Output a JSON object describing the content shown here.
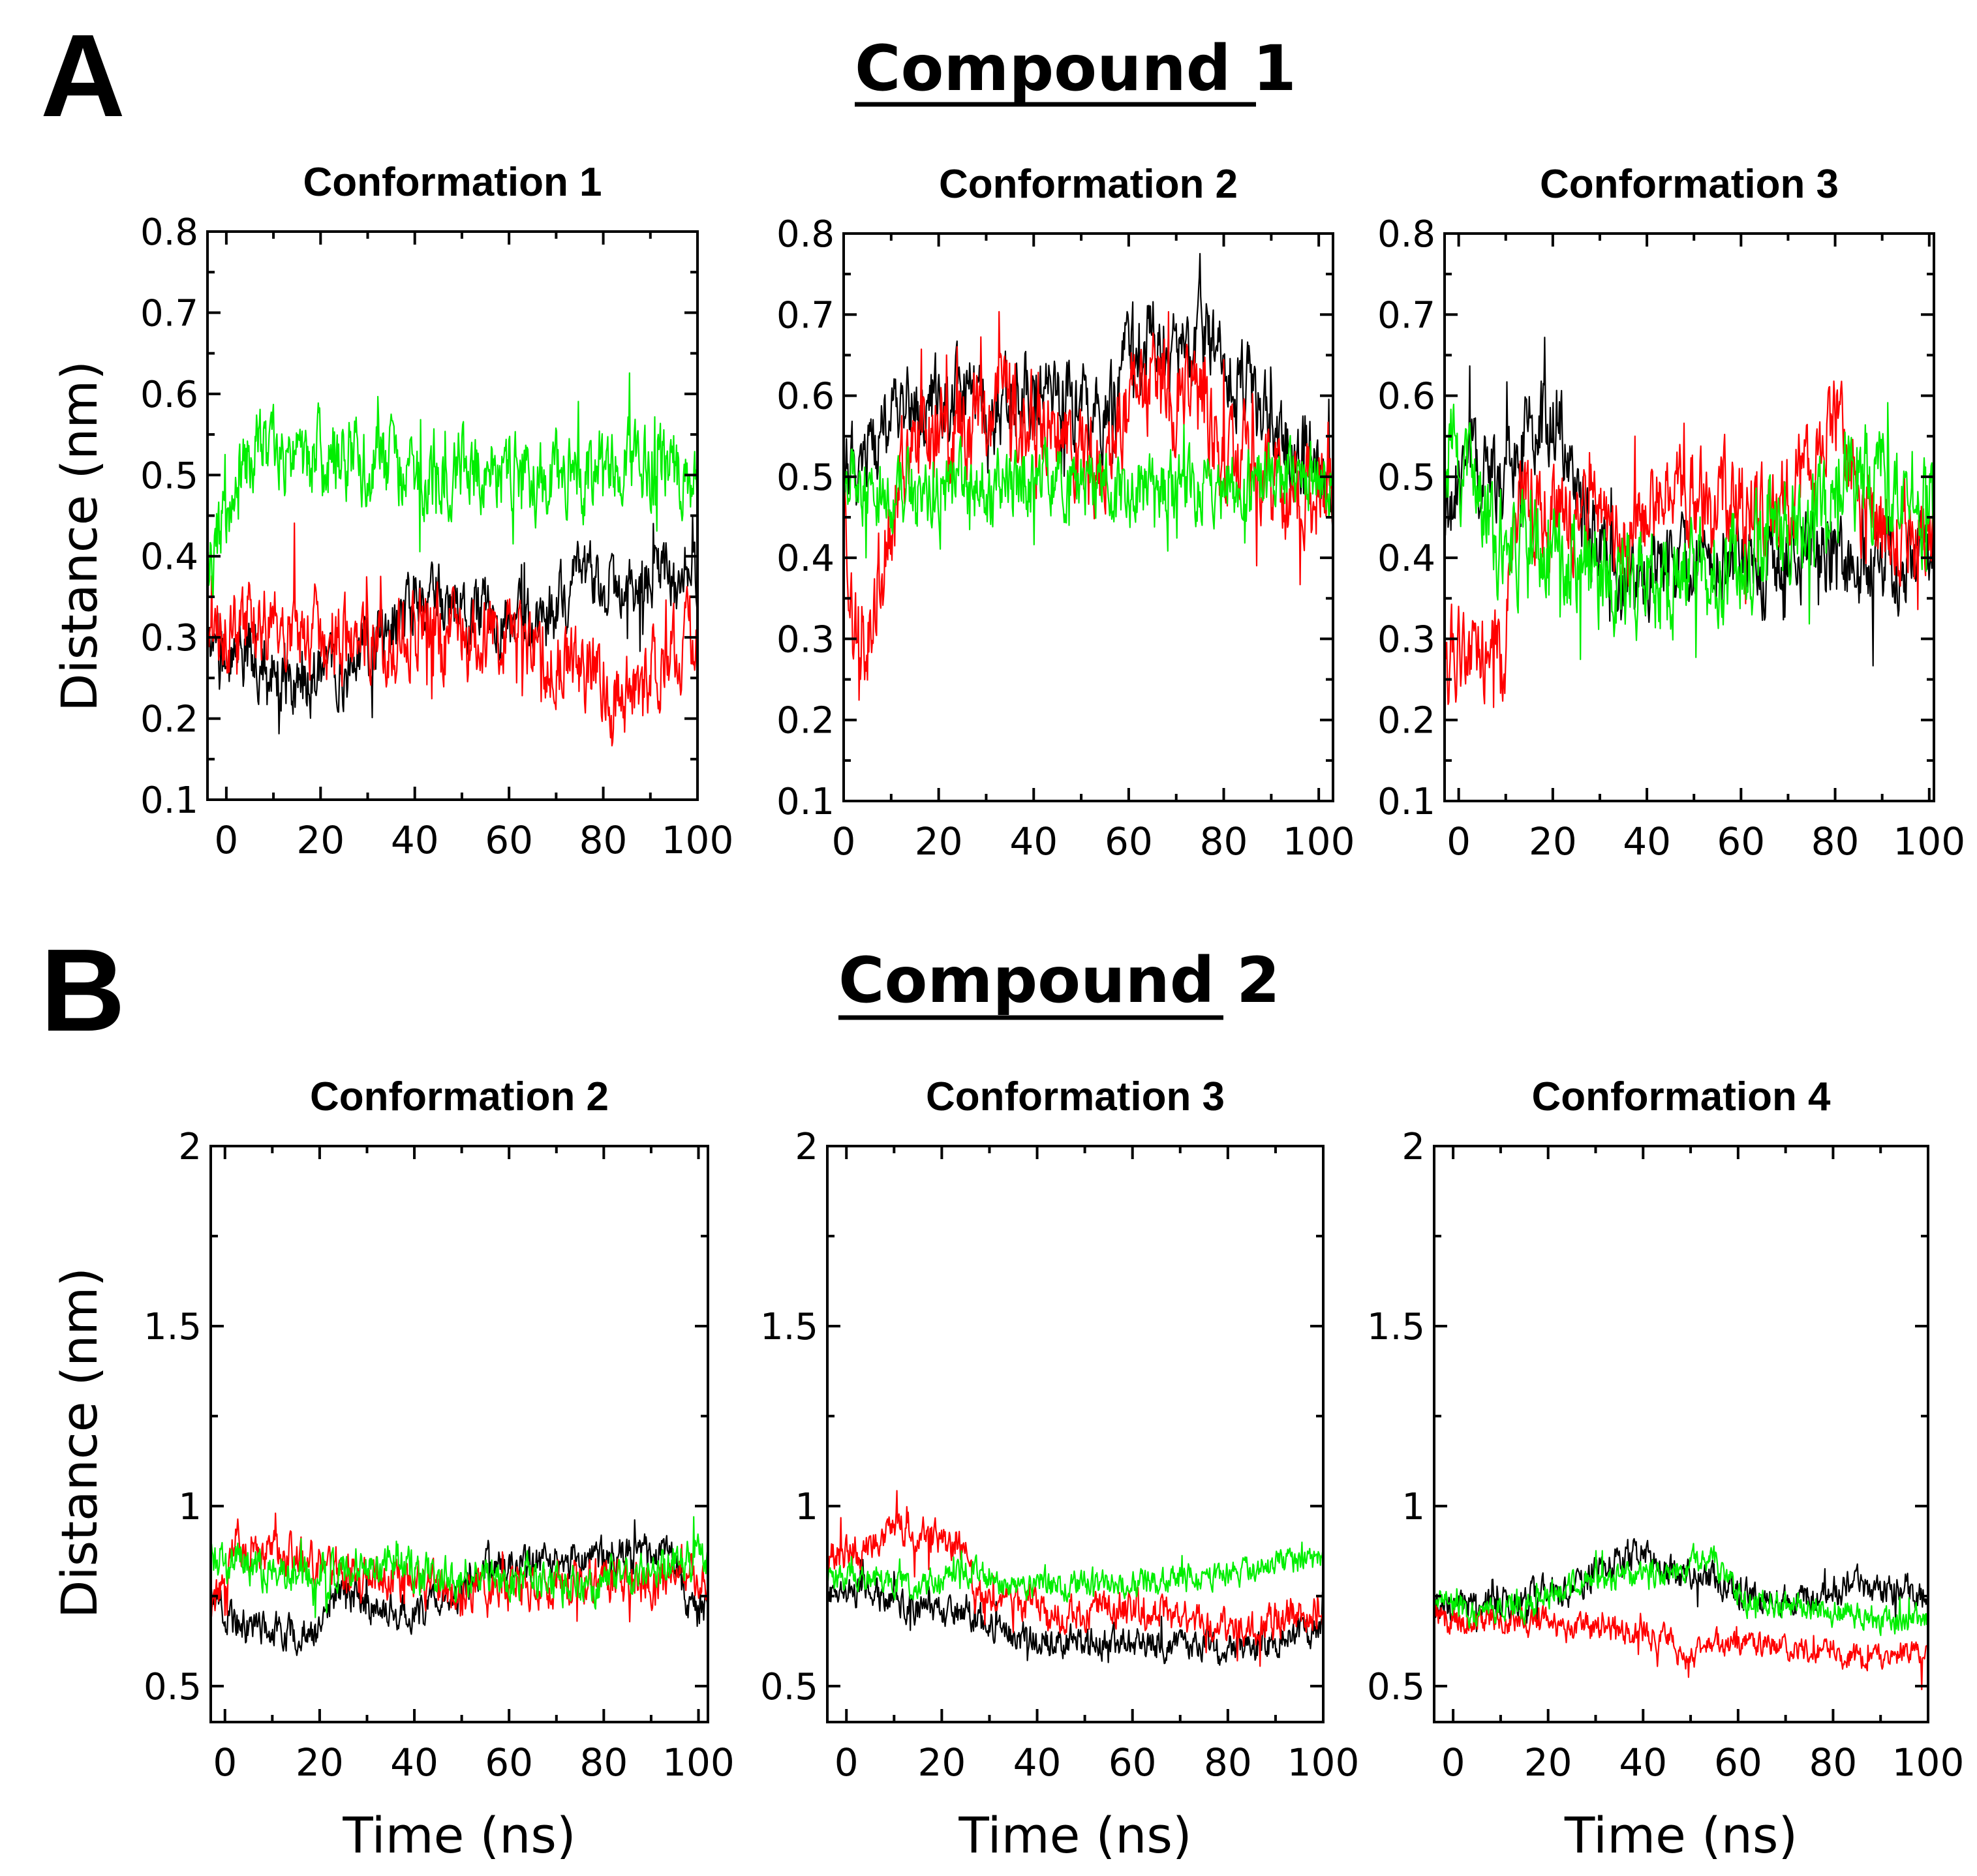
{
  "figure": {
    "sections": [
      {
        "letter": "A",
        "compound_title": "Compound 1",
        "ylabel": "Distance (nm)",
        "xlabel": ""
      },
      {
        "letter": "B",
        "compound_title": "Compound 2",
        "ylabel": "Distance (nm)",
        "xlabel": "Time (ns)"
      }
    ]
  },
  "series_colors": {
    "black": "#000000",
    "red": "#ff0000",
    "green": "#00ee00"
  },
  "chart_data": [
    {
      "type": "line",
      "section": "A",
      "title": "Conformation 1",
      "xlabel": "",
      "ylabel": "Distance (nm)",
      "xlim": [
        -4,
        100
      ],
      "ylim": [
        0.1,
        0.8
      ],
      "xticks": [
        0,
        20,
        40,
        60,
        80,
        100
      ],
      "xtick_labels": [
        "0",
        "20",
        "40",
        "60",
        "80",
        "100"
      ],
      "yticks": [
        0.1,
        0.2,
        0.3,
        0.4,
        0.5,
        0.6,
        0.7,
        0.8
      ],
      "ytick_labels": [
        "0.1",
        "0.2",
        "0.3",
        "0.4",
        "0.5",
        "0.6",
        "0.7",
        "0.8"
      ],
      "series": [
        {
          "name": "black",
          "color": "#000000",
          "x": [
            -4,
            5,
            15,
            25,
            35,
            45,
            55,
            65,
            75,
            85,
            95,
            100
          ],
          "y": [
            0.27,
            0.28,
            0.25,
            0.26,
            0.31,
            0.35,
            0.33,
            0.31,
            0.36,
            0.36,
            0.38,
            0.37
          ],
          "noise": 0.035
        },
        {
          "name": "red",
          "color": "#ff0000",
          "x": [
            -4,
            5,
            15,
            25,
            35,
            45,
            55,
            65,
            75,
            85,
            95,
            100
          ],
          "y": [
            0.3,
            0.32,
            0.31,
            0.3,
            0.3,
            0.31,
            0.3,
            0.29,
            0.26,
            0.23,
            0.29,
            0.31
          ],
          "noise": 0.04
        },
        {
          "name": "green",
          "color": "#00ee00",
          "x": [
            -4,
            5,
            15,
            25,
            35,
            45,
            55,
            65,
            75,
            85,
            95,
            100
          ],
          "y": [
            0.38,
            0.53,
            0.52,
            0.52,
            0.51,
            0.51,
            0.51,
            0.5,
            0.51,
            0.51,
            0.51,
            0.5
          ],
          "noise": 0.04
        }
      ]
    },
    {
      "type": "line",
      "section": "A",
      "title": "Conformation 2",
      "xlabel": "",
      "ylabel": "",
      "xlim": [
        0,
        103
      ],
      "ylim": [
        0.1,
        0.8
      ],
      "xticks": [
        0,
        20,
        40,
        60,
        80,
        100
      ],
      "xtick_labels": [
        "0",
        "20",
        "40",
        "60",
        "80",
        "100"
      ],
      "yticks": [
        0.1,
        0.2,
        0.3,
        0.4,
        0.5,
        0.6,
        0.7,
        0.8
      ],
      "ytick_labels": [
        "0.1",
        "0.2",
        "0.3",
        "0.4",
        "0.5",
        "0.6",
        "0.7",
        "0.8"
      ],
      "series": [
        {
          "name": "black",
          "color": "#000000",
          "x": [
            0,
            5,
            10,
            20,
            30,
            40,
            50,
            56,
            60,
            65,
            70,
            75,
            80,
            90,
            100,
            103
          ],
          "y": [
            0.5,
            0.52,
            0.58,
            0.6,
            0.59,
            0.61,
            0.59,
            0.57,
            0.67,
            0.68,
            0.65,
            0.68,
            0.63,
            0.58,
            0.52,
            0.45
          ],
          "noise": 0.04
        },
        {
          "name": "red",
          "color": "#ff0000",
          "x": [
            0,
            2,
            5,
            8,
            12,
            20,
            30,
            40,
            50,
            54,
            56,
            62,
            68,
            72,
            80,
            90,
            100,
            103
          ],
          "y": [
            0.45,
            0.3,
            0.32,
            0.38,
            0.52,
            0.54,
            0.58,
            0.57,
            0.53,
            0.5,
            0.56,
            0.62,
            0.6,
            0.63,
            0.52,
            0.49,
            0.48,
            0.46
          ],
          "noise": 0.05
        },
        {
          "name": "green",
          "color": "#00ee00",
          "x": [
            0,
            10,
            20,
            30,
            40,
            50,
            60,
            70,
            80,
            90,
            100,
            103
          ],
          "y": [
            0.5,
            0.48,
            0.49,
            0.48,
            0.49,
            0.48,
            0.48,
            0.49,
            0.48,
            0.51,
            0.5,
            0.49
          ],
          "noise": 0.035
        }
      ]
    },
    {
      "type": "line",
      "section": "A",
      "title": "Conformation 3",
      "xlabel": "",
      "ylabel": "",
      "xlim": [
        -3,
        101
      ],
      "ylim": [
        0.1,
        0.8
      ],
      "xticks": [
        0,
        20,
        40,
        60,
        80,
        100
      ],
      "xtick_labels": [
        "0",
        "20",
        "40",
        "60",
        "80",
        "100"
      ],
      "yticks": [
        0.1,
        0.2,
        0.3,
        0.4,
        0.5,
        0.6,
        0.7,
        0.8
      ],
      "ytick_labels": [
        "0.1",
        "0.2",
        "0.3",
        "0.4",
        "0.5",
        "0.6",
        "0.7",
        "0.8"
      ],
      "series": [
        {
          "name": "black",
          "color": "#000000",
          "x": [
            -3,
            3,
            8,
            15,
            22,
            27,
            35,
            45,
            55,
            65,
            75,
            85,
            95,
            101
          ],
          "y": [
            0.45,
            0.52,
            0.48,
            0.57,
            0.56,
            0.43,
            0.37,
            0.38,
            0.4,
            0.39,
            0.41,
            0.4,
            0.39,
            0.41
          ],
          "noise": 0.04
        },
        {
          "name": "red",
          "color": "#ff0000",
          "x": [
            -3,
            5,
            10,
            11,
            15,
            25,
            35,
            45,
            55,
            65,
            70,
            75,
            80,
            85,
            90,
            95,
            101
          ],
          "y": [
            0.28,
            0.29,
            0.27,
            0.44,
            0.46,
            0.44,
            0.43,
            0.48,
            0.48,
            0.45,
            0.47,
            0.52,
            0.58,
            0.47,
            0.44,
            0.41,
            0.45
          ],
          "noise": 0.045
        },
        {
          "name": "green",
          "color": "#00ee00",
          "x": [
            -3,
            3,
            8,
            15,
            25,
            35,
            45,
            55,
            65,
            75,
            85,
            95,
            101
          ],
          "y": [
            0.55,
            0.47,
            0.42,
            0.4,
            0.39,
            0.38,
            0.37,
            0.38,
            0.42,
            0.45,
            0.5,
            0.48,
            0.46
          ],
          "noise": 0.05
        }
      ]
    },
    {
      "type": "line",
      "section": "B",
      "title": "Conformation 2",
      "xlabel": "Time (ns)",
      "ylabel": "Distance (nm)",
      "xlim": [
        -3,
        102
      ],
      "ylim": [
        0.4,
        2.0
      ],
      "xticks": [
        0,
        20,
        40,
        60,
        80,
        100
      ],
      "xtick_labels": [
        "0",
        "20",
        "40",
        "60",
        "80",
        "100"
      ],
      "yticks": [
        0.5,
        1.0,
        1.5,
        2.0
      ],
      "ytick_labels": [
        "0.5",
        "1",
        "1.5",
        "2"
      ],
      "series": [
        {
          "name": "black",
          "color": "#000000",
          "x": [
            -3,
            5,
            15,
            20,
            25,
            30,
            40,
            50,
            55,
            60,
            70,
            80,
            90,
            95,
            98,
            102
          ],
          "y": [
            0.72,
            0.66,
            0.65,
            0.65,
            0.78,
            0.72,
            0.7,
            0.75,
            0.85,
            0.84,
            0.85,
            0.86,
            0.87,
            0.85,
            0.72,
            0.7
          ],
          "noise": 0.04
        },
        {
          "name": "red",
          "color": "#ff0000",
          "x": [
            -3,
            2,
            5,
            10,
            20,
            30,
            40,
            50,
            60,
            70,
            80,
            90,
            100,
            102
          ],
          "y": [
            0.68,
            0.92,
            0.88,
            0.86,
            0.84,
            0.8,
            0.78,
            0.76,
            0.76,
            0.78,
            0.8,
            0.78,
            0.82,
            0.8
          ],
          "noise": 0.05
        },
        {
          "name": "green",
          "color": "#00ee00",
          "x": [
            -3,
            5,
            15,
            25,
            35,
            45,
            55,
            65,
            75,
            85,
            95,
            102
          ],
          "y": [
            0.85,
            0.84,
            0.8,
            0.82,
            0.84,
            0.8,
            0.79,
            0.8,
            0.78,
            0.8,
            0.84,
            0.86
          ],
          "noise": 0.045
        }
      ]
    },
    {
      "type": "line",
      "section": "B",
      "title": "Conformation 3",
      "xlabel": "Time (ns)",
      "ylabel": "",
      "xlim": [
        -4,
        100
      ],
      "ylim": [
        0.4,
        2.0
      ],
      "xticks": [
        0,
        20,
        40,
        60,
        80,
        100
      ],
      "xtick_labels": [
        "0",
        "20",
        "40",
        "60",
        "80",
        "100"
      ],
      "yticks": [
        0.5,
        1.0,
        1.5,
        2.0
      ],
      "ytick_labels": [
        "0.5",
        "1",
        "1.5",
        "2"
      ],
      "series": [
        {
          "name": "black",
          "color": "#000000",
          "x": [
            -4,
            5,
            15,
            25,
            30,
            40,
            50,
            60,
            70,
            80,
            90,
            100
          ],
          "y": [
            0.75,
            0.76,
            0.72,
            0.7,
            0.66,
            0.63,
            0.62,
            0.62,
            0.62,
            0.6,
            0.62,
            0.66
          ],
          "noise": 0.035
        },
        {
          "name": "red",
          "color": "#ff0000",
          "x": [
            -4,
            5,
            10,
            15,
            20,
            25,
            27,
            35,
            45,
            55,
            65,
            75,
            85,
            95,
            100
          ],
          "y": [
            0.86,
            0.88,
            0.97,
            0.92,
            0.9,
            0.86,
            0.75,
            0.72,
            0.7,
            0.72,
            0.7,
            0.68,
            0.66,
            0.7,
            0.7
          ],
          "noise": 0.04
        },
        {
          "name": "green",
          "color": "#00ee00",
          "x": [
            -4,
            5,
            15,
            25,
            35,
            45,
            55,
            65,
            75,
            85,
            95,
            100
          ],
          "y": [
            0.8,
            0.8,
            0.78,
            0.82,
            0.78,
            0.78,
            0.79,
            0.79,
            0.8,
            0.82,
            0.85,
            0.85
          ],
          "noise": 0.03
        }
      ]
    },
    {
      "type": "line",
      "section": "B",
      "title": "Conformation 4",
      "xlabel": "Time (ns)",
      "ylabel": "",
      "xlim": [
        -4,
        100
      ],
      "ylim": [
        0.4,
        2.0
      ],
      "xticks": [
        0,
        20,
        40,
        60,
        80,
        100
      ],
      "xtick_labels": [
        "0",
        "20",
        "40",
        "60",
        "80",
        "100"
      ],
      "yticks": [
        0.5,
        1.0,
        1.5,
        2.0
      ],
      "ytick_labels": [
        "0.5",
        "1",
        "1.5",
        "2"
      ],
      "series": [
        {
          "name": "black",
          "color": "#000000",
          "x": [
            -4,
            5,
            15,
            25,
            35,
            40,
            45,
            55,
            65,
            75,
            85,
            95,
            100
          ],
          "y": [
            0.72,
            0.74,
            0.75,
            0.77,
            0.85,
            0.87,
            0.82,
            0.8,
            0.74,
            0.75,
            0.78,
            0.76,
            0.75
          ],
          "noise": 0.035
        },
        {
          "name": "red",
          "color": "#ff0000",
          "x": [
            -4,
            5,
            15,
            25,
            35,
            45,
            48,
            50,
            55,
            65,
            75,
            85,
            95,
            100
          ],
          "y": [
            0.7,
            0.68,
            0.68,
            0.66,
            0.66,
            0.63,
            0.58,
            0.57,
            0.62,
            0.62,
            0.6,
            0.58,
            0.58,
            0.58
          ],
          "noise": 0.03
        },
        {
          "name": "green",
          "color": "#00ee00",
          "x": [
            -4,
            5,
            15,
            25,
            35,
            45,
            55,
            60,
            65,
            75,
            85,
            95,
            100
          ],
          "y": [
            0.74,
            0.7,
            0.72,
            0.78,
            0.8,
            0.82,
            0.85,
            0.75,
            0.72,
            0.72,
            0.7,
            0.68,
            0.7
          ],
          "noise": 0.03
        }
      ]
    }
  ]
}
